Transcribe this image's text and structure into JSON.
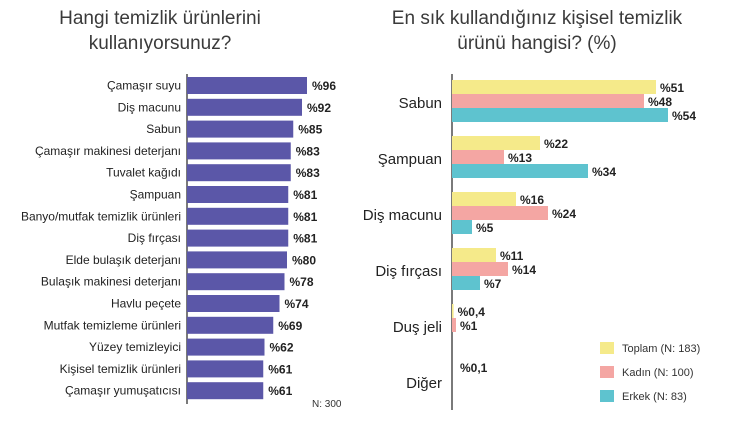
{
  "chart_data": [
    {
      "type": "bar",
      "orientation": "horizontal",
      "title_lines": [
        "Hangi temizlik ürünlerini",
        "kullanıyorsunuz?"
      ],
      "categories": [
        "Çamaşır suyu",
        "Diş macunu",
        "Sabun",
        "Çamaşır makinesi deterjanı",
        "Tuvalet kağıdı",
        "Şampuan",
        "Banyo/mutfak temizlik ürünleri",
        "Diş fırçası",
        "Elde bulaşık deterjanı",
        "Bulaşık makinesi deterjanı",
        "Havlu peçete",
        "Mutfak temizleme ürünleri",
        "Yüzey temizleyici",
        "Kişisel temizlik ürünleri",
        "Çamaşır yumuşatıcısı"
      ],
      "values": [
        96,
        92,
        85,
        83,
        83,
        81,
        81,
        81,
        80,
        78,
        74,
        69,
        62,
        61,
        61
      ],
      "value_labels": [
        "%96",
        "%92",
        "%85",
        "%83",
        "%83",
        "%81",
        "%81",
        "%81",
        "%80",
        "%78",
        "%74",
        "%69",
        "%62",
        "%61",
        "%61"
      ],
      "xlim": [
        0,
        100
      ],
      "note": "N: 300",
      "color": "#5b57a8"
    },
    {
      "type": "bar",
      "orientation": "horizontal",
      "title_lines": [
        "En sık kullandığınız kişisel temizlik",
        "ürünü hangisi? (%)"
      ],
      "categories": [
        "Sabun",
        "Şampuan",
        "Diş macunu",
        "Diş fırçası",
        "Duş jeli",
        "Diğer"
      ],
      "xlim": [
        0,
        60
      ],
      "series": [
        {
          "name": "Toplam (N: 183)",
          "color": "#f5ea8a",
          "values": [
            51,
            22,
            16,
            11,
            0.4,
            null
          ],
          "value_labels": [
            "%51",
            "%22",
            "%16",
            "%11",
            "%0,4",
            ""
          ]
        },
        {
          "name": "Kadın (N: 100)",
          "color": "#f4a6a3",
          "values": [
            48,
            13,
            24,
            14,
            1,
            null
          ],
          "value_labels": [
            "%48",
            "%13",
            "%24",
            "%14",
            "%1",
            ""
          ]
        },
        {
          "name": "Erkek (N: 83)",
          "color": "#5ec3cf",
          "values": [
            54,
            34,
            5,
            7,
            null,
            null
          ],
          "value_labels": [
            "%54",
            "%34",
            "%5",
            "%7",
            "",
            ""
          ]
        }
      ],
      "extra_labels": [
        {
          "category": "Diğer",
          "text": "%0,1"
        }
      ]
    }
  ]
}
